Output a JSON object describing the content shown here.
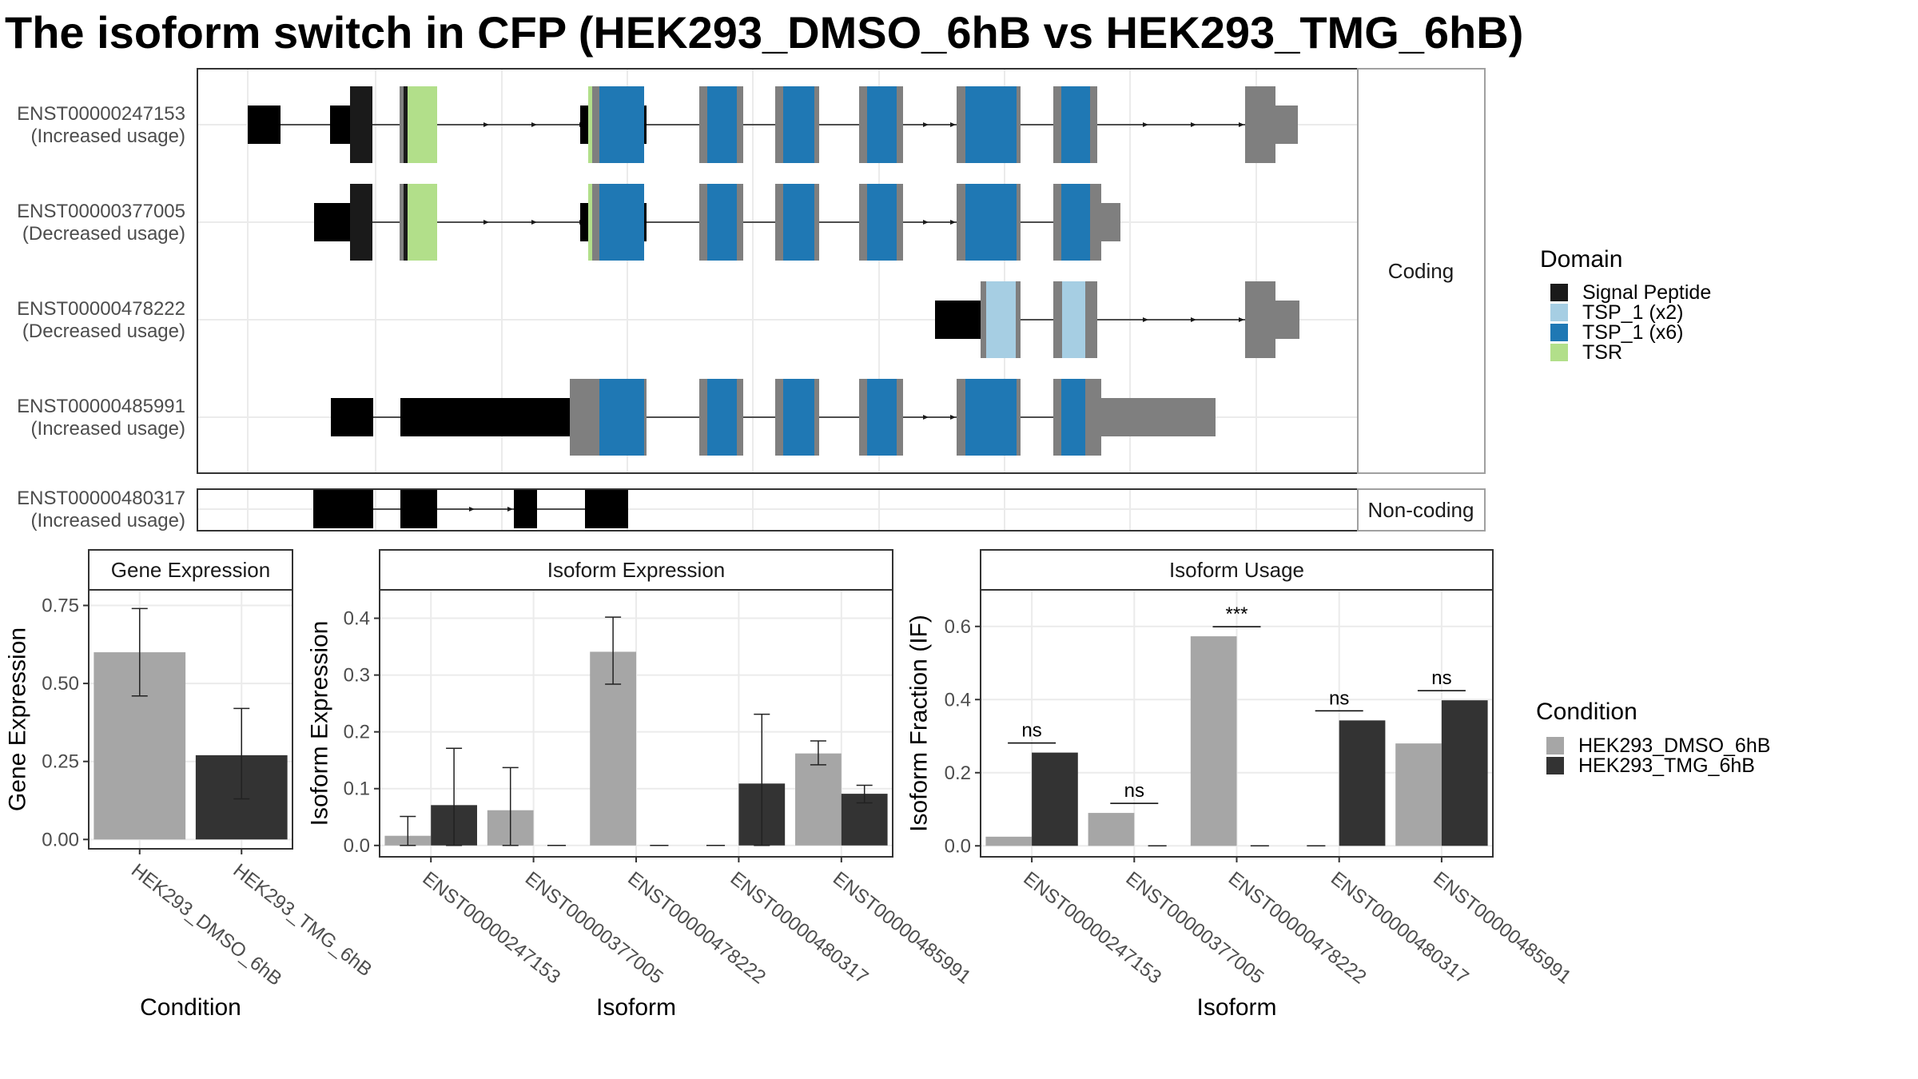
{
  "title": "The isoform switch in CFP (HEK293_DMSO_6hB vs HEK293_TMG_6hB)",
  "colors": {
    "utr": "#7f7f7f",
    "signal_peptide": "#1a1a1a",
    "tsp1_x2": "#a6cee3",
    "tsp1_x6": "#1f78b4",
    "tsr": "#b2df8a",
    "dmso": "#a6a6a6",
    "tmg": "#333333"
  },
  "domain_legend": {
    "title": "Domain",
    "items": [
      {
        "label": "Signal Peptide",
        "color": "#1a1a1a"
      },
      {
        "label": "TSP_1 (x2)",
        "color": "#a6cee3"
      },
      {
        "label": "TSP_1 (x6)",
        "color": "#1f78b4"
      },
      {
        "label": "TSR",
        "color": "#b2df8a"
      }
    ]
  },
  "condition_legend": {
    "title": "Condition",
    "items": [
      {
        "label": "HEK293_DMSO_6hB",
        "color": "#a6a6a6"
      },
      {
        "label": "HEK293_TMG_6hB",
        "color": "#333333"
      }
    ]
  },
  "structure": {
    "coding_label": "Coding",
    "noncoding_label": "Non-coding",
    "transcripts": [
      {
        "id": "ENST00000247153",
        "status": "(Increased usage)",
        "group": "coding"
      },
      {
        "id": "ENST00000377005",
        "status": "(Decreased usage)",
        "group": "coding"
      },
      {
        "id": "ENST00000478222",
        "status": "(Decreased usage)",
        "group": "coding"
      },
      {
        "id": "ENST00000485991",
        "status": "(Increased usage)",
        "group": "coding"
      },
      {
        "id": "ENST00000480317",
        "status": "(Increased usage)",
        "group": "noncoding"
      }
    ]
  },
  "chart_data": [
    {
      "type": "bar",
      "title": "Gene Expression",
      "xlabel": "Condition",
      "ylabel": "Gene Expression",
      "categories": [
        "HEK293_DMSO_6hB",
        "HEK293_TMG_6hB"
      ],
      "values": [
        0.6,
        0.27
      ],
      "error_low": [
        0.46,
        0.13
      ],
      "error_high": [
        0.74,
        0.42
      ],
      "ylim": [
        -0.03,
        0.8
      ],
      "yticks": [
        0.0,
        0.25,
        0.5,
        0.75
      ],
      "ytick_labels": [
        "0.00",
        "0.25",
        "0.50",
        "0.75"
      ]
    },
    {
      "type": "bar",
      "title": "Isoform Expression",
      "xlabel": "Isoform",
      "ylabel": "Isoform Expression",
      "categories": [
        "ENST00000247153",
        "ENST00000377005",
        "ENST00000478222",
        "ENST00000480317",
        "ENST00000485991"
      ],
      "series": [
        {
          "name": "HEK293_DMSO_6hB",
          "values": [
            0.017,
            0.062,
            0.341,
            0.0,
            0.162
          ],
          "error_low": [
            0.0,
            0.0,
            0.284,
            0.0,
            0.142
          ],
          "error_high": [
            0.051,
            0.137,
            0.402,
            0.0,
            0.184
          ]
        },
        {
          "name": "HEK293_TMG_6hB",
          "values": [
            0.071,
            0.0,
            0.0,
            0.109,
            0.091
          ],
          "error_low": [
            0.0,
            0.0,
            0.0,
            0.0,
            0.075
          ],
          "error_high": [
            0.171,
            0.0,
            0.0,
            0.231,
            0.106
          ]
        }
      ],
      "ylim": [
        -0.02,
        0.45
      ],
      "yticks": [
        0.0,
        0.1,
        0.2,
        0.3,
        0.4
      ],
      "ytick_labels": [
        "0.0",
        "0.1",
        "0.2",
        "0.3",
        "0.4"
      ]
    },
    {
      "type": "bar",
      "title": "Isoform Usage",
      "xlabel": "Isoform",
      "ylabel": "Isoform Fraction (IF)",
      "categories": [
        "ENST00000247153",
        "ENST00000377005",
        "ENST00000478222",
        "ENST00000480317",
        "ENST00000485991"
      ],
      "series": [
        {
          "name": "HEK293_DMSO_6hB",
          "values": [
            0.025,
            0.09,
            0.573,
            0.0,
            0.28
          ]
        },
        {
          "name": "HEK293_TMG_6hB",
          "values": [
            0.255,
            0.0,
            0.0,
            0.343,
            0.398
          ]
        }
      ],
      "significance": [
        "ns",
        "ns",
        "***",
        "ns",
        "ns"
      ],
      "ylim": [
        -0.03,
        0.7
      ],
      "yticks": [
        0.0,
        0.2,
        0.4,
        0.6
      ],
      "ytick_labels": [
        "0.0",
        "0.2",
        "0.4",
        "0.6"
      ]
    }
  ]
}
